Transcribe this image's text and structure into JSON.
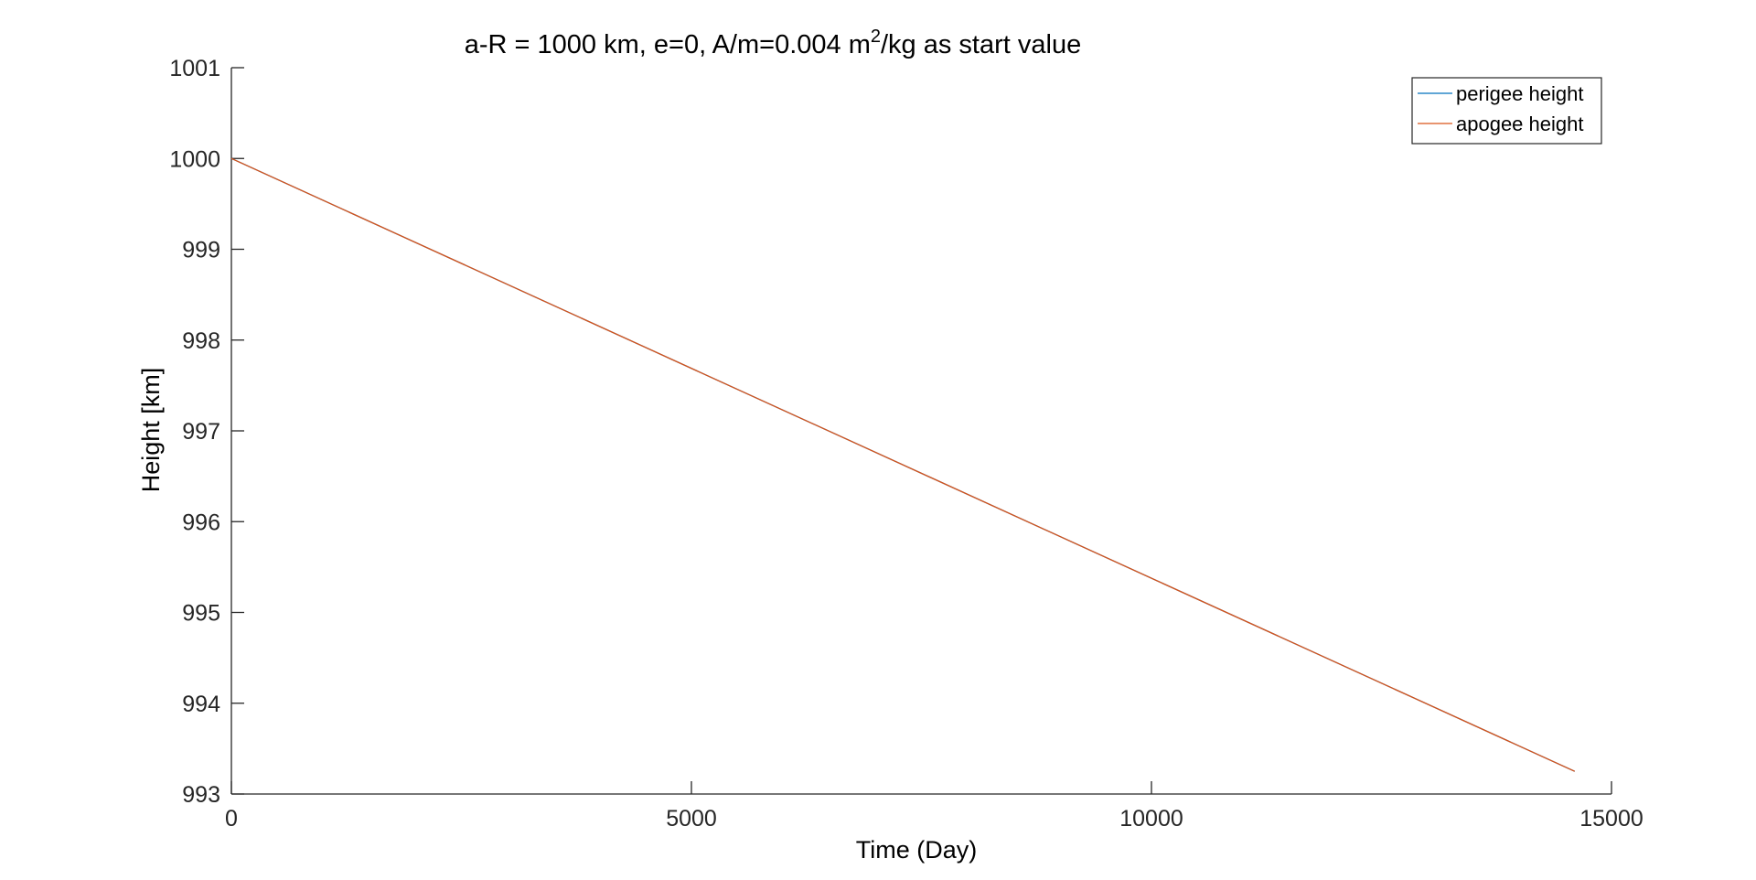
{
  "chart_data": {
    "type": "line",
    "title_main": "a-R = 1000 km, e=0, A/m=0.004 m",
    "title_sup": "2",
    "title_tail": "/kg as start value",
    "xlabel": "Time (Day)",
    "ylabel": "Height [km]",
    "xlim": [
      0,
      15000
    ],
    "ylim": [
      993,
      1001
    ],
    "xticks": [
      0,
      5000,
      10000,
      15000
    ],
    "xtick_labels": [
      "0",
      "5000",
      "10000",
      "15000"
    ],
    "yticks": [
      993,
      994,
      995,
      996,
      997,
      998,
      999,
      1000,
      1001
    ],
    "ytick_labels": [
      "993",
      "994",
      "995",
      "996",
      "997",
      "998",
      "999",
      "1000",
      "1001"
    ],
    "grid": false,
    "legend_position": "top-right",
    "series": [
      {
        "name": "perigee height",
        "color": "#0072BD",
        "x": [
          0,
          14600
        ],
        "y": [
          1000,
          993.25
        ]
      },
      {
        "name": "apogee height",
        "color": "#D95319",
        "x": [
          0,
          14600
        ],
        "y": [
          1000,
          993.25
        ]
      }
    ]
  }
}
